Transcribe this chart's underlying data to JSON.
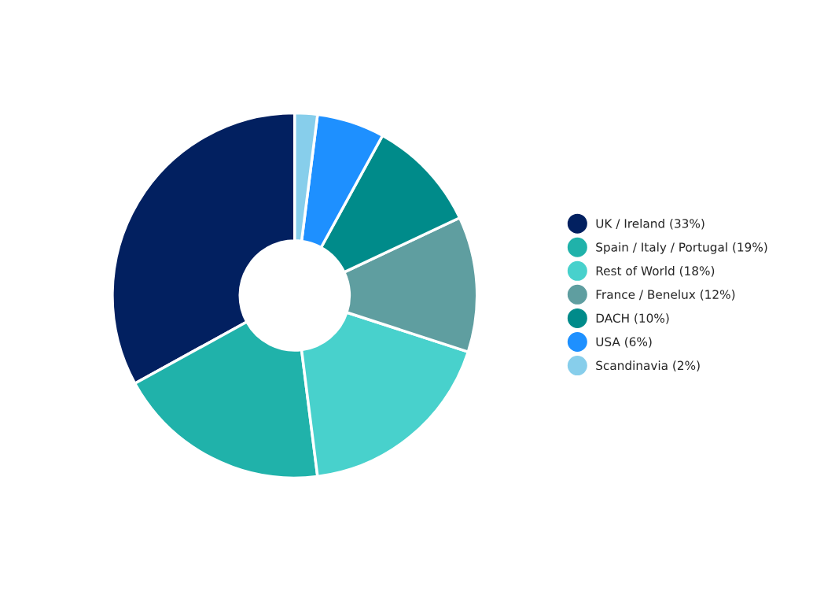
{
  "chart_data": {
    "type": "donut",
    "categories": [
      "UK / Ireland (33%)",
      "Spain / Italy / Portugal (19%)",
      "Rest of World (18%)",
      "France / Benelux (12%)",
      "DACH (10%)",
      "USA (6%)",
      "Scandinavia (2%)"
    ],
    "values": [
      33,
      19,
      18,
      12,
      10,
      6,
      2
    ],
    "colors": [
      "#022060",
      "#20b2aa",
      "#48d1cc",
      "#5f9ea0",
      "#008b8a",
      "#1e90ff",
      "#87ceeb"
    ],
    "legend": "right"
  }
}
